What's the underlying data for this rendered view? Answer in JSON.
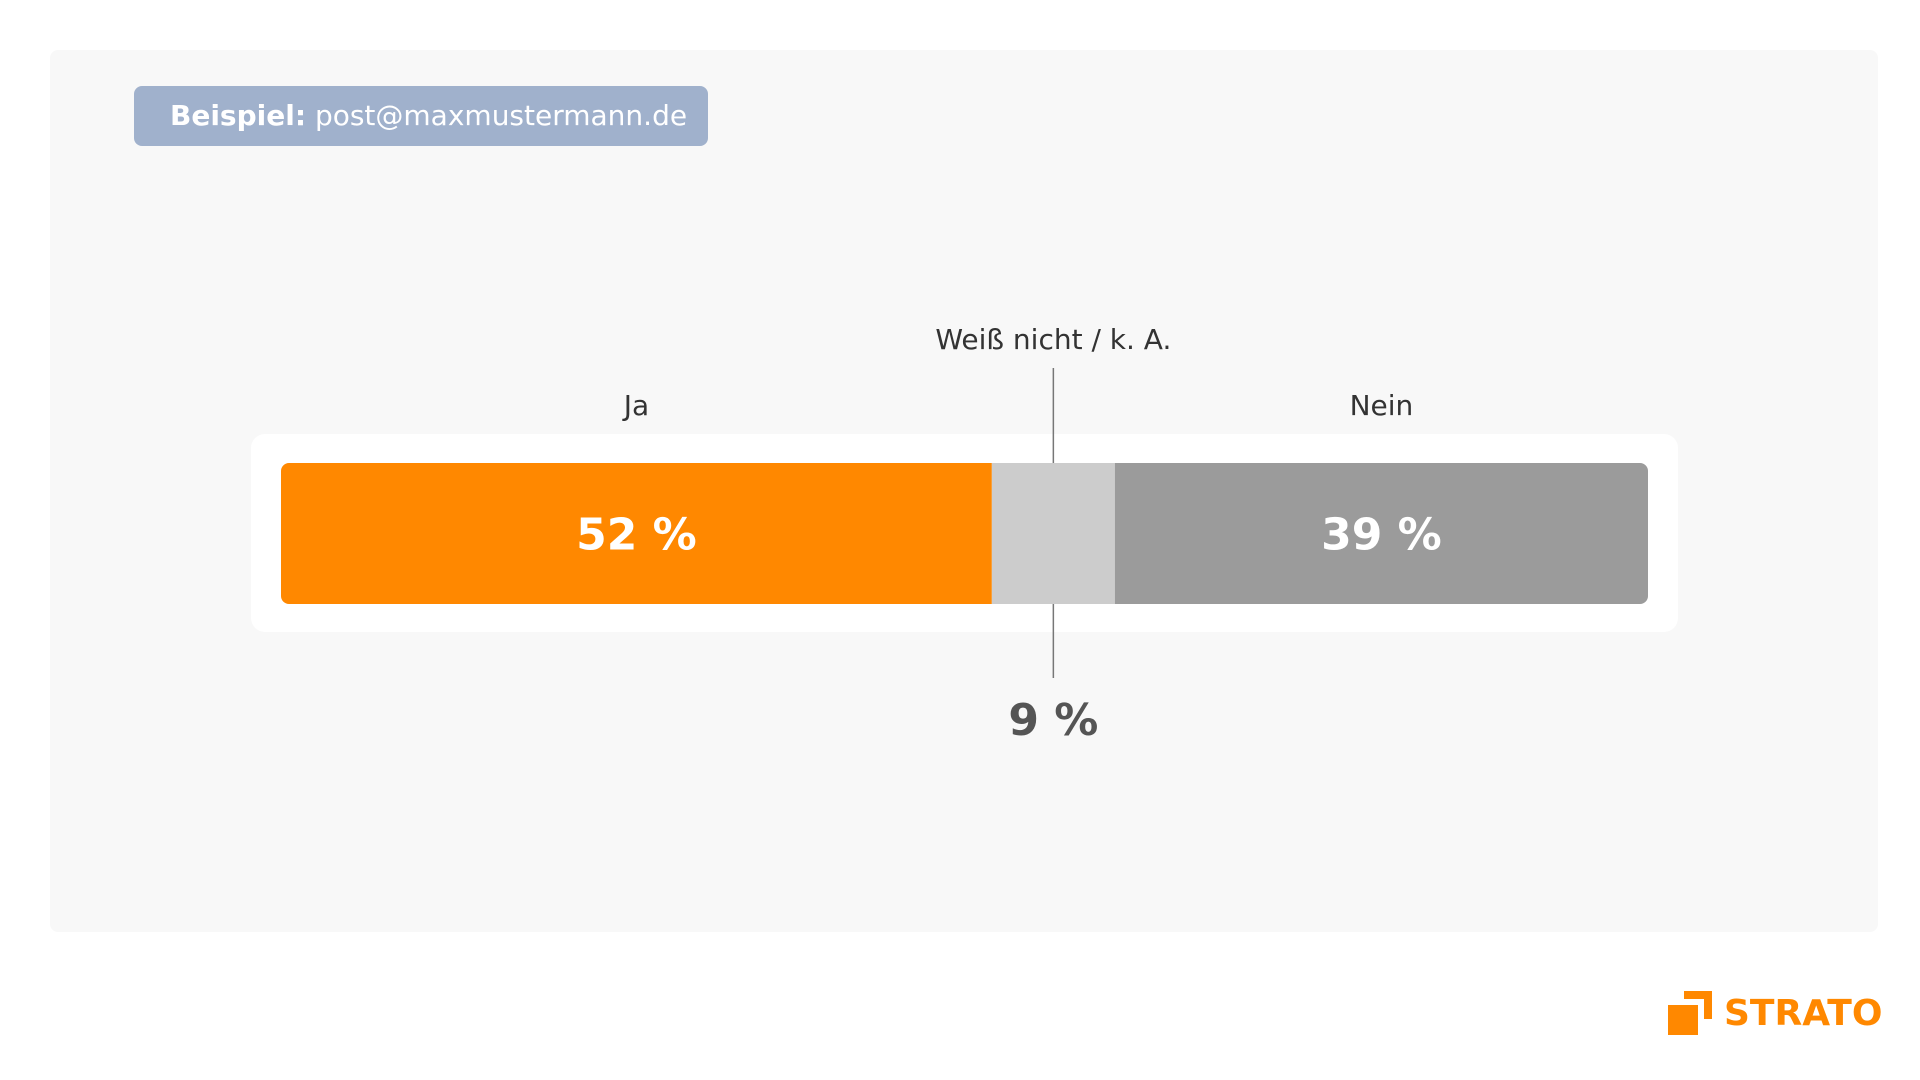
{
  "example": {
    "label": "Beispiel:",
    "value": "post@maxmustermann.de"
  },
  "chart_data": {
    "type": "bar",
    "orientation": "horizontal-stacked",
    "categories": [
      "Ja",
      "Weiß nicht / k. A.",
      "Nein"
    ],
    "values": [
      52,
      9,
      39
    ],
    "value_labels": [
      "52 %",
      "9 %",
      "39 %"
    ],
    "unit": "%",
    "colors": [
      "#ff8800",
      "#cccccc",
      "#9b9b9b"
    ],
    "title": "",
    "xlabel": "",
    "ylabel": "",
    "xlim": [
      0,
      100
    ],
    "grid": false,
    "legend": "none"
  },
  "logo": {
    "text": "STRATO",
    "color": "#ff8800",
    "icon": "strato-logo-icon"
  }
}
